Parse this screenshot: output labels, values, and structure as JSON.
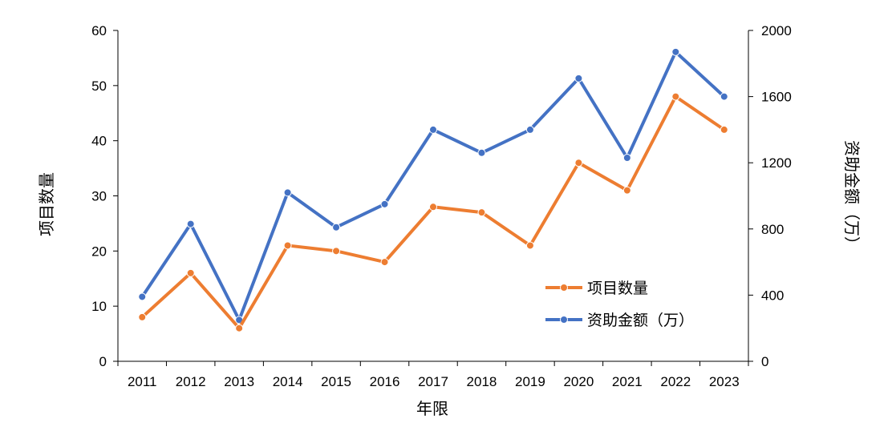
{
  "chart_data": {
    "type": "line",
    "categories": [
      "2011",
      "2012",
      "2013",
      "2014",
      "2015",
      "2016",
      "2017",
      "2018",
      "2019",
      "2020",
      "2021",
      "2022",
      "2023"
    ],
    "xlabel": "年限",
    "ylabel_left": "项目数量",
    "ylabel_right": "资助金额（万）",
    "ylim_left": [
      0,
      60
    ],
    "ylim_right": [
      0,
      2000
    ],
    "yticks_left": [
      "0",
      "10",
      "20",
      "30",
      "40",
      "50",
      "60"
    ],
    "yticks_right": [
      "0",
      "400",
      "800",
      "1200",
      "1600",
      "2000"
    ],
    "grid": false,
    "legend_position": "bottom-right",
    "series": [
      {
        "name": "项目数量",
        "axis": "left",
        "color": "#ED7D31",
        "values": [
          8,
          16,
          6,
          21,
          20,
          18,
          28,
          27,
          21,
          36,
          31,
          48,
          42
        ]
      },
      {
        "name": "资助金额（万）",
        "axis": "right",
        "color": "#4472C4",
        "values": [
          390,
          830,
          250,
          1020,
          810,
          950,
          1400,
          1260,
          1400,
          1710,
          1230,
          1870,
          1600
        ]
      }
    ]
  }
}
